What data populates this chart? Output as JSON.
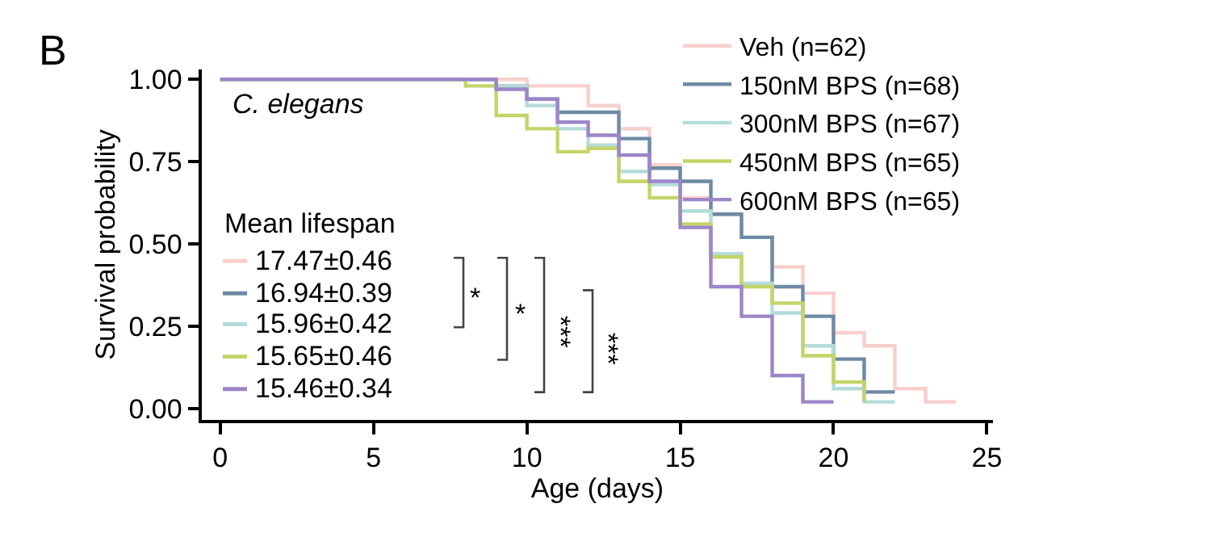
{
  "chart_data": {
    "type": "step",
    "xlabel": "Age (days)",
    "ylabel": "Survival probability",
    "xlim": [
      -0.6,
      25.2
    ],
    "ylim": [
      -0.035,
      1.03
    ],
    "xticks": [
      0,
      5,
      10,
      15,
      20,
      25
    ],
    "yticks": [
      {
        "value": 0,
        "label": "0.00"
      },
      {
        "value": 0.25,
        "label": "0.25"
      },
      {
        "value": 0.5,
        "label": "0.50"
      },
      {
        "value": 0.75,
        "label": "0.75"
      },
      {
        "value": 1,
        "label": "1.00"
      }
    ],
    "legend": "top right",
    "marker": "none",
    "line_style": "solid",
    "series": [
      {
        "name": "Veh (n=62)",
        "color": "#f8cfcc",
        "x": [
          0,
          10,
          12,
          13,
          14,
          15,
          16,
          17,
          18,
          19,
          20,
          21,
          22,
          23,
          24
        ],
        "values": [
          1.0,
          0.98,
          0.92,
          0.85,
          0.74,
          0.64,
          0.59,
          0.52,
          0.43,
          0.35,
          0.23,
          0.19,
          0.06,
          0.02,
          0.02
        ]
      },
      {
        "name": "150nM BPS (n=68)",
        "color": "#6e8aa5",
        "x": [
          0,
          9,
          10,
          11,
          12,
          13,
          14,
          15,
          16,
          17,
          18,
          19,
          20,
          21,
          22
        ],
        "values": [
          1.0,
          0.98,
          0.94,
          0.9,
          0.9,
          0.82,
          0.73,
          0.69,
          0.59,
          0.52,
          0.37,
          0.28,
          0.15,
          0.05,
          0.05
        ]
      },
      {
        "name": "300nM BPS (n=67)",
        "color": "#b4dcd8",
        "x": [
          0,
          9,
          10,
          11,
          12,
          13,
          14,
          15,
          16,
          17,
          18,
          19,
          20,
          21,
          22
        ],
        "values": [
          1.0,
          0.98,
          0.92,
          0.85,
          0.8,
          0.72,
          0.68,
          0.6,
          0.47,
          0.38,
          0.29,
          0.19,
          0.06,
          0.02,
          0.02
        ]
      },
      {
        "name": "450nM BPS (n=65)",
        "color": "#c4d46a",
        "x": [
          0,
          8,
          9,
          10,
          11,
          12,
          13,
          14,
          15,
          16,
          17,
          18,
          19,
          20,
          21
        ],
        "values": [
          1.0,
          0.98,
          0.89,
          0.85,
          0.78,
          0.79,
          0.69,
          0.64,
          0.56,
          0.46,
          0.37,
          0.32,
          0.16,
          0.08,
          0.02
        ]
      },
      {
        "name": "600nM BPS (n=65)",
        "color": "#9c86c8",
        "x": [
          0,
          9,
          10,
          11,
          12,
          13,
          14,
          15,
          16,
          17,
          18,
          19,
          20
        ],
        "values": [
          1.0,
          0.97,
          0.94,
          0.87,
          0.83,
          0.77,
          0.69,
          0.55,
          0.37,
          0.28,
          0.1,
          0.02,
          0.02
        ]
      }
    ],
    "annotations": [
      "B",
      "C. elegans",
      "Mean lifespan",
      "17.47±0.46",
      "16.94±0.39",
      "15.96±0.42",
      "15.65±0.46",
      "15.46±0.34",
      "*",
      "*",
      "***",
      "***"
    ]
  }
}
